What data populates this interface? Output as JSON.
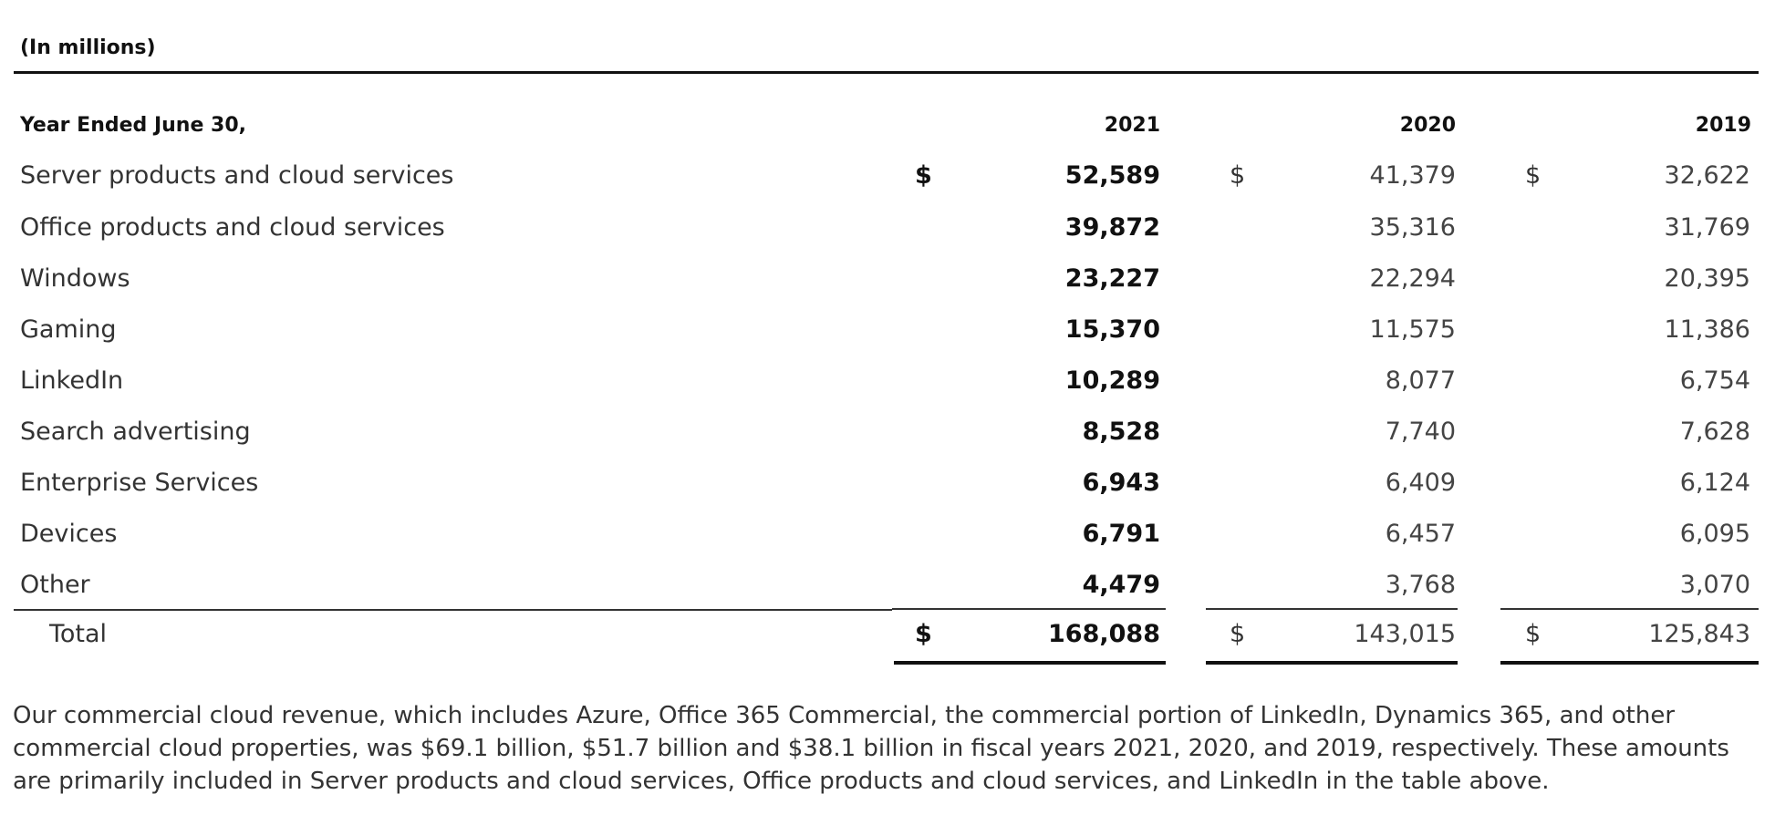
{
  "units_label": "(In millions)",
  "header": {
    "label": "Year Ended June 30,",
    "years": [
      "2021",
      "2020",
      "2019"
    ]
  },
  "currency_symbol": "$",
  "rows": [
    {
      "label": "Server products and cloud services",
      "values": [
        "52,589",
        "41,379",
        "32,622"
      ]
    },
    {
      "label": "Office products and cloud services",
      "values": [
        "39,872",
        "35,316",
        "31,769"
      ]
    },
    {
      "label": "Windows",
      "values": [
        "23,227",
        "22,294",
        "20,395"
      ]
    },
    {
      "label": "Gaming",
      "values": [
        "15,370",
        "11,575",
        "11,386"
      ]
    },
    {
      "label": "LinkedIn",
      "values": [
        "10,289",
        "8,077",
        "6,754"
      ]
    },
    {
      "label": "Search advertising",
      "values": [
        "8,528",
        "7,740",
        "7,628"
      ]
    },
    {
      "label": "Enterprise Services",
      "values": [
        "6,943",
        "6,409",
        "6,124"
      ]
    },
    {
      "label": "Devices",
      "values": [
        "6,791",
        "6,457",
        "6,095"
      ]
    },
    {
      "label": "Other",
      "values": [
        "4,479",
        "3,768",
        "3,070"
      ]
    }
  ],
  "total": {
    "label": "Total",
    "values": [
      "168,088",
      "143,015",
      "125,843"
    ]
  },
  "note": "Our commercial cloud revenue, which includes Azure, Office 365 Commercial, the commercial portion of LinkedIn, Dynamics 365, and other commercial cloud properties, was $69.1 billion, $51.7 billion and $38.1 billion in fiscal years 2021, 2020, and 2019, respectively. These amounts are primarily included in Server products and cloud services, Office products and cloud services, and LinkedIn in the table above."
}
